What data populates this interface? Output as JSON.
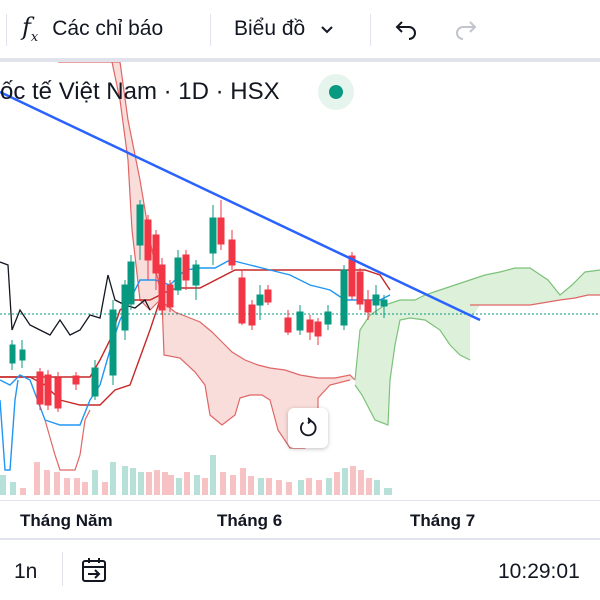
{
  "toolbar": {
    "indicators_icon": "fx-icon",
    "indicators_label": "Các chỉ báo",
    "chart_type_label": "Biểu đồ",
    "undo_icon": "undo-icon",
    "redo_icon": "redo-icon"
  },
  "legend": {
    "title": "ốc tế Việt Nam · 1D · HSX",
    "status_color": "#089981"
  },
  "time_axis": {
    "labels": [
      "Tháng Năm",
      "Tháng 6",
      "Tháng 7"
    ]
  },
  "bottom_bar": {
    "interval_label": "1n",
    "goto_date_icon": "calendar-arrow-icon",
    "clock": "10:29:01"
  },
  "colors": {
    "up": "#089981",
    "down": "#f23645",
    "trendline": "#2962ff",
    "cloud_bear": "#f8d7d5",
    "cloud_bull": "#d8eed6"
  },
  "chart_data": {
    "type": "candlestick",
    "x_labels": [
      "Tháng Năm",
      "Tháng 6",
      "Tháng 7"
    ],
    "y_axis_visible": false
  }
}
